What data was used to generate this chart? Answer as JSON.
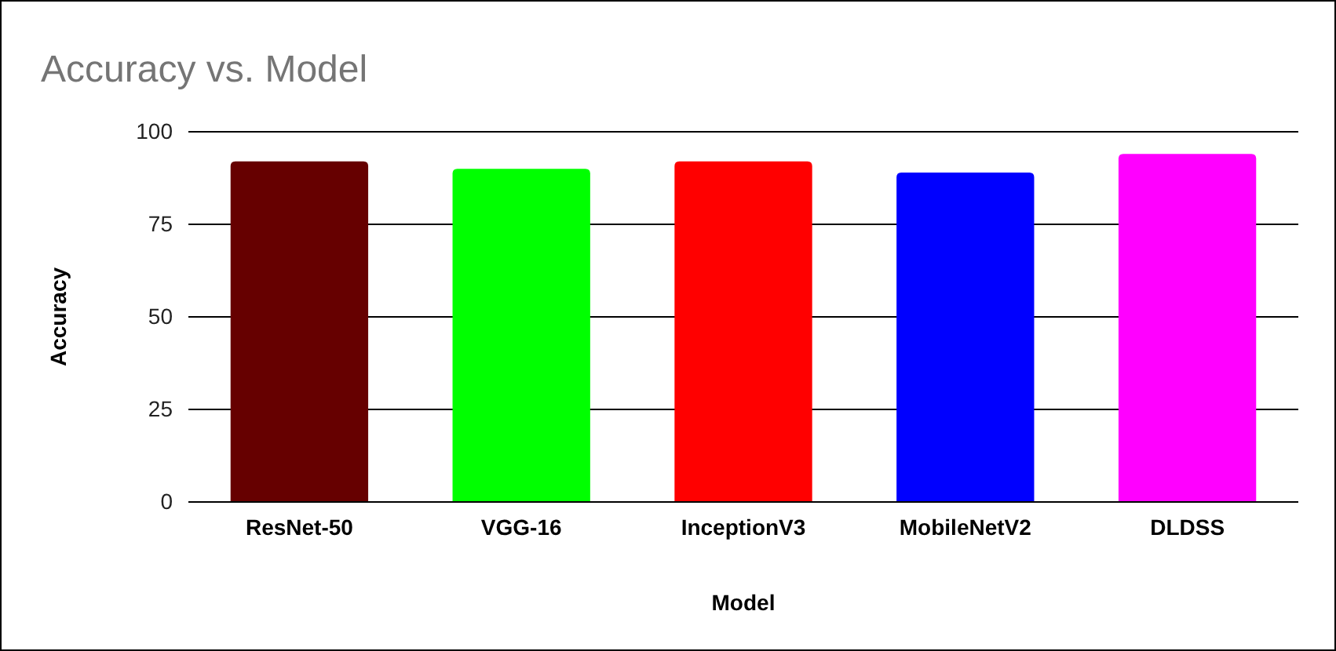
{
  "chart_data": {
    "type": "bar",
    "title": "Accuracy vs. Model",
    "xlabel": "Model",
    "ylabel": "Accuracy",
    "categories": [
      "ResNet-50",
      "VGG-16",
      "InceptionV3",
      "MobileNetV2",
      "DLDSS"
    ],
    "values": [
      92,
      90,
      92,
      89,
      94
    ],
    "colors": [
      "#660000",
      "#00ff00",
      "#ff0000",
      "#0000ff",
      "#ff00ff"
    ],
    "ylim": [
      0,
      100
    ],
    "yticks": [
      0,
      25,
      50,
      75,
      100
    ],
    "grid": "y"
  }
}
